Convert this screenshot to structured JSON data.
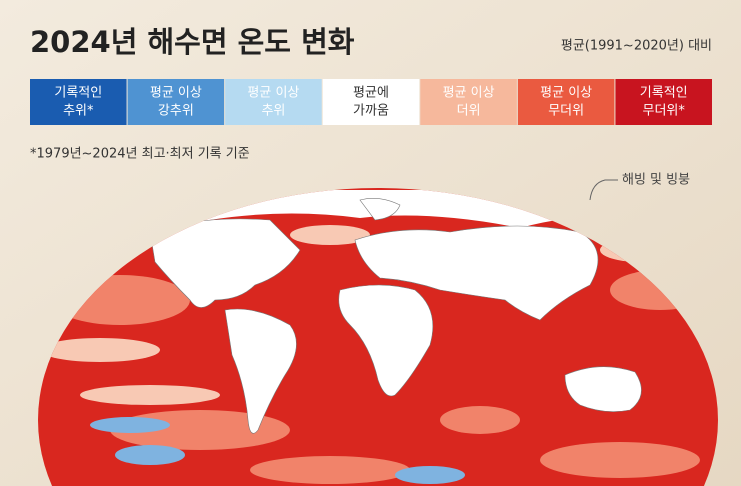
{
  "header": {
    "title": "2024년 해수면 온도 변화",
    "subtitle": "평균(1991~2020년) 대비"
  },
  "legend": {
    "items": [
      {
        "lines": [
          "기록적인",
          "추위*"
        ],
        "color": "#1a5cb0",
        "text_color": "#ffffff"
      },
      {
        "lines": [
          "평균 이상",
          "강추위"
        ],
        "color": "#4f93d2",
        "text_color": "#ffffff"
      },
      {
        "lines": [
          "평균 이상",
          "추위"
        ],
        "color": "#b5daf1",
        "text_color": "#ffffff"
      },
      {
        "lines": [
          "평균에",
          "가까움"
        ],
        "color": "#ffffff",
        "text_color": "#333333"
      },
      {
        "lines": [
          "평균 이상",
          "더위"
        ],
        "color": "#f6b89c",
        "text_color": "#ffffff"
      },
      {
        "lines": [
          "평균 이상",
          "무더위"
        ],
        "color": "#ea5a40",
        "text_color": "#ffffff"
      },
      {
        "lines": [
          "기록적인",
          "무더위*"
        ],
        "color": "#c8141f",
        "text_color": "#ffffff"
      }
    ]
  },
  "footnote": "*1979년~2024년 최고·최저 기록 기준",
  "map": {
    "annotation": "해빙 및 빙붕"
  }
}
